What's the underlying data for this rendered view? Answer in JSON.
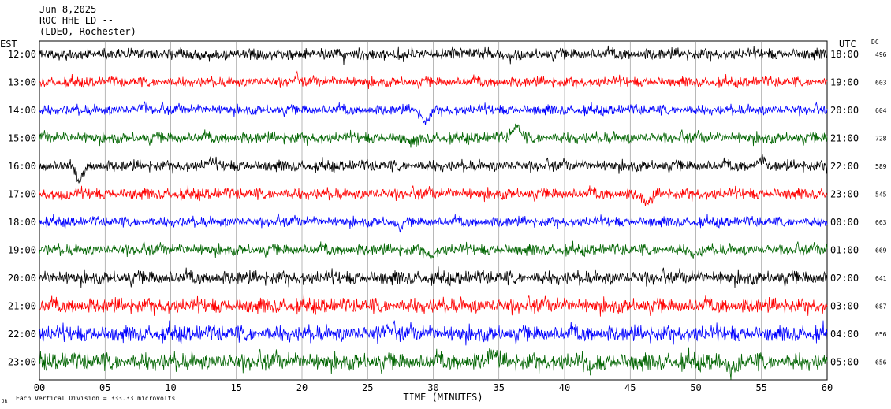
{
  "header": {
    "date": "Jun 8,2025",
    "station": "ROC HHE LD --",
    "network": "(LDEO, Rochester)"
  },
  "left_axis_label": "EST",
  "right_axis_label": "UTC",
  "dc_label": "DC",
  "footer": {
    "scale_note": "Each Vertical Division =  333.33 microvolts",
    "corner_mark": "JR"
  },
  "chart_data": {
    "type": "line",
    "title": "",
    "xlabel": "TIME (MINUTES)",
    "ylabel": "",
    "xlim": [
      0,
      60
    ],
    "x_ticks": [
      "00",
      "05",
      "10",
      "15",
      "20",
      "25",
      "30",
      "35",
      "40",
      "45",
      "50",
      "55",
      "60"
    ],
    "grid": true,
    "trace_colors": [
      "#000000",
      "#ff0000",
      "#0000ff",
      "#006400"
    ],
    "rows": [
      {
        "est": "12:00",
        "utc": "18:00",
        "dc": "496",
        "color": "#000000",
        "amp": 9,
        "events": []
      },
      {
        "est": "13:00",
        "utc": "19:00",
        "dc": "603",
        "color": "#ff0000",
        "amp": 8,
        "events": [
          {
            "t": 19.5,
            "a": -4
          }
        ]
      },
      {
        "est": "14:00",
        "utc": "20:00",
        "dc": "604",
        "color": "#0000ff",
        "amp": 8,
        "events": [
          {
            "t": 8,
            "a": -5
          },
          {
            "t": 29.4,
            "a": 14
          }
        ]
      },
      {
        "est": "15:00",
        "utc": "21:00",
        "dc": "728",
        "color": "#006400",
        "amp": 9,
        "events": [
          {
            "t": 36.3,
            "a": -14
          },
          {
            "t": 28.5,
            "a": 6
          }
        ]
      },
      {
        "est": "16:00",
        "utc": "22:00",
        "dc": "589",
        "color": "#000000",
        "amp": 9,
        "events": [
          {
            "t": 3,
            "a": 16
          },
          {
            "t": 55,
            "a": -8
          },
          {
            "t": 13,
            "a": -4
          }
        ]
      },
      {
        "est": "17:00",
        "utc": "23:00",
        "dc": "545",
        "color": "#ff0000",
        "amp": 9,
        "events": [
          {
            "t": 46.3,
            "a": 12
          },
          {
            "t": 2,
            "a": 4
          }
        ]
      },
      {
        "est": "18:00",
        "utc": "00:00",
        "dc": "663",
        "color": "#0000ff",
        "amp": 8,
        "events": [
          {
            "t": 27.5,
            "a": 5
          }
        ]
      },
      {
        "est": "19:00",
        "utc": "01:00",
        "dc": "669",
        "color": "#006400",
        "amp": 9,
        "events": [
          {
            "t": 29.8,
            "a": 7
          },
          {
            "t": 50,
            "a": 5
          }
        ]
      },
      {
        "est": "20:00",
        "utc": "02:00",
        "dc": "641",
        "color": "#000000",
        "amp": 11,
        "events": []
      },
      {
        "est": "21:00",
        "utc": "03:00",
        "dc": "687",
        "color": "#ff0000",
        "amp": 12,
        "events": []
      },
      {
        "est": "22:00",
        "utc": "04:00",
        "dc": "656",
        "color": "#0000ff",
        "amp": 13,
        "events": [
          {
            "t": 26.5,
            "a": -8
          }
        ]
      },
      {
        "est": "23:00",
        "utc": "05:00",
        "dc": "656",
        "color": "#006400",
        "amp": 14,
        "events": [
          {
            "t": 34.5,
            "a": -10
          },
          {
            "t": 42,
            "a": 8
          },
          {
            "t": 52.7,
            "a": 14
          }
        ]
      }
    ]
  }
}
